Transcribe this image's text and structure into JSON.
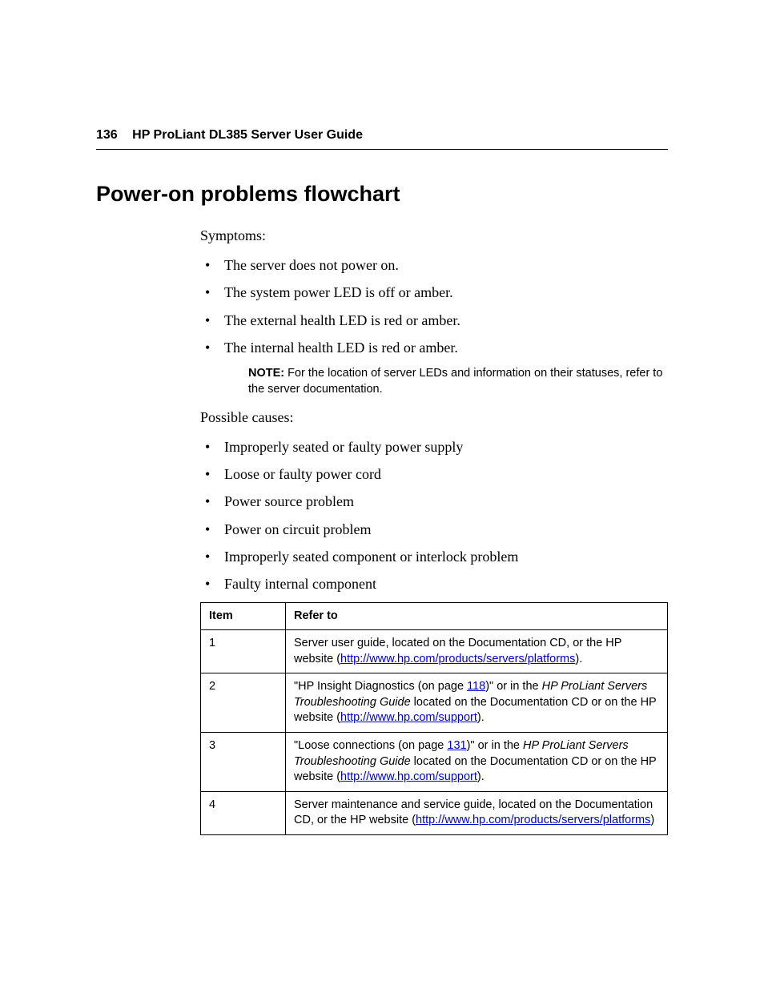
{
  "header": {
    "page_number": "136",
    "running_title": "HP ProLiant DL385 Server User Guide"
  },
  "section_title": "Power-on problems flowchart",
  "symptoms_label": "Symptoms:",
  "symptoms": [
    "The server does not power on.",
    "The system power LED is off or amber.",
    "The external health LED is red or amber.",
    "The internal health LED is red or amber."
  ],
  "note": {
    "label": "NOTE:",
    "text": "For the location of server LEDs and information on their statuses, refer to the server documentation."
  },
  "causes_label": "Possible causes:",
  "causes": [
    "Improperly seated or faulty power supply",
    "Loose or faulty power cord",
    "Power source problem",
    "Power on circuit problem",
    "Improperly seated component or interlock problem",
    "Faulty internal component"
  ],
  "table": {
    "headers": {
      "item": "Item",
      "refer": "Refer to"
    },
    "rows": [
      {
        "item": "1",
        "pre": "Server user guide, located on the Documentation CD, or the HP website (",
        "link": "http://www.hp.com/products/servers/platforms",
        "post": ")."
      },
      {
        "item": "2",
        "pre": "\"HP Insight Diagnostics (on page ",
        "pagelink": "118",
        "mid1": ")\" or in the ",
        "ital": "HP ProLiant Servers Troubleshooting Guide",
        "mid2": " located on the Documentation CD or on the HP website (",
        "link": "http://www.hp.com/support",
        "post": ")."
      },
      {
        "item": "3",
        "pre": "\"Loose connections (on page ",
        "pagelink": "131",
        "mid1": ")\" or in the ",
        "ital": "HP ProLiant Servers Troubleshooting Guide",
        "mid2": " located on the Documentation CD or on the HP website (",
        "link": "http://www.hp.com/support",
        "post": ")."
      },
      {
        "item": "4",
        "pre": "Server maintenance and service guide, located on the Documentation CD, or the HP website (",
        "link": "http://www.hp.com/products/servers/platforms",
        "post": ")"
      }
    ]
  },
  "colors": {
    "link": "#0000cc",
    "text": "#000000",
    "rule": "#000000",
    "background": "#ffffff"
  }
}
